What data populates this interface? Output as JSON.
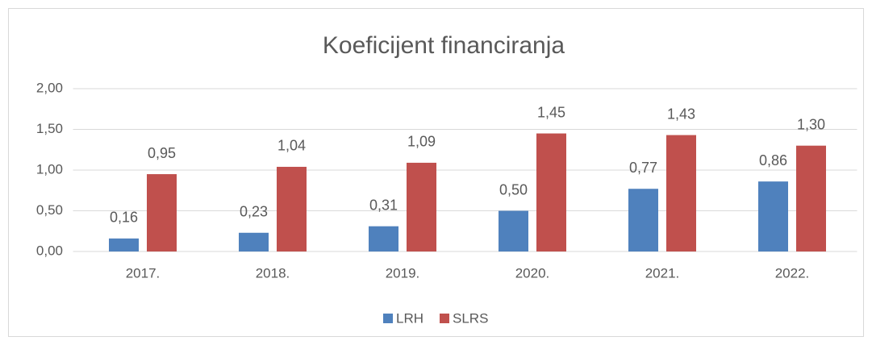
{
  "chart_data": {
    "type": "bar",
    "title": "Koeficijent financiranja",
    "categories": [
      "2017.",
      "2018.",
      "2019.",
      "2020.",
      "2021.",
      "2022."
    ],
    "series": [
      {
        "name": "LRH",
        "color": "#4f81bd",
        "values": [
          0.16,
          0.23,
          0.31,
          0.5,
          0.77,
          0.86
        ],
        "value_labels": [
          "0,16",
          "0,23",
          "0,31",
          "0,50",
          "0,77",
          "0,86"
        ]
      },
      {
        "name": "SLRS",
        "color": "#c0504d",
        "values": [
          0.95,
          1.04,
          1.09,
          1.45,
          1.43,
          1.3
        ],
        "value_labels": [
          "0,95",
          "1,04",
          "1,09",
          "1,45",
          "1,43",
          "1,30"
        ]
      }
    ],
    "ylim": [
      0,
      2
    ],
    "yticks": [
      {
        "value": 0,
        "label": "0,00"
      },
      {
        "value": 0.5,
        "label": "0,50"
      },
      {
        "value": 1,
        "label": "1,00"
      },
      {
        "value": 1.5,
        "label": "1,50"
      },
      {
        "value": 2,
        "label": "2,00"
      }
    ],
    "grid": true,
    "legend": "bottom"
  }
}
